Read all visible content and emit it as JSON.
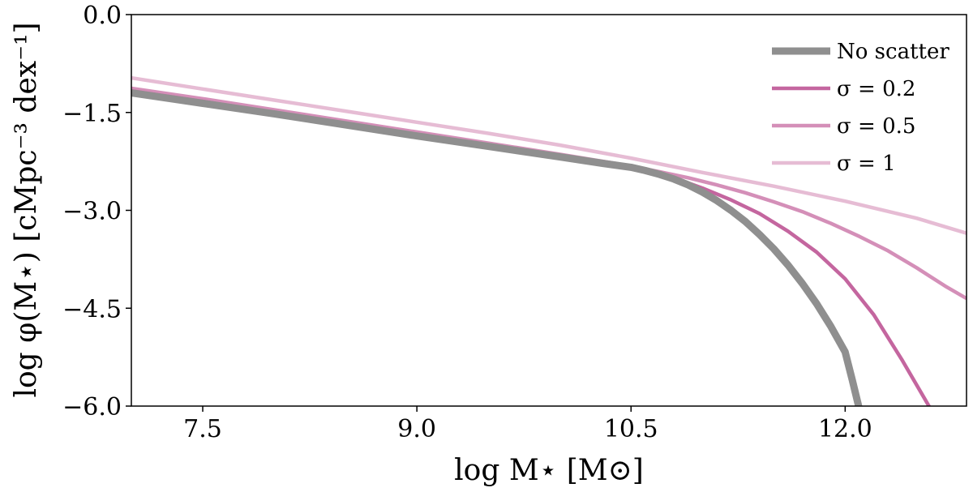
{
  "chart_data": {
    "type": "line",
    "xlabel": "log M⋆ [M⊙]",
    "ylabel": "log φ(M⋆) [cMpc⁻³ dex⁻¹]",
    "xlim": [
      7.0,
      12.85
    ],
    "ylim": [
      -6.0,
      0.0
    ],
    "x_ticks": [
      7.5,
      9.0,
      10.5,
      12.0
    ],
    "x_tick_labels": [
      "7.5",
      "9.0",
      "10.5",
      "12.0"
    ],
    "y_ticks": [
      0.0,
      -1.5,
      -3.0,
      -4.5,
      -6.0
    ],
    "y_tick_labels": [
      "0.0",
      "−1.5",
      "−3.0",
      "−4.5",
      "−6.0"
    ],
    "grid": false,
    "legend_position": "top-right",
    "series": [
      {
        "name": "No scatter",
        "color": "#8f8f8f",
        "x": [
          7.0,
          7.5,
          8.0,
          8.5,
          9.0,
          9.5,
          10.0,
          10.3,
          10.5,
          10.6,
          10.7,
          10.8,
          10.9,
          11.0,
          11.1,
          11.2,
          11.3,
          11.4,
          11.5,
          11.6,
          11.7,
          11.8,
          11.9,
          12.0,
          12.05,
          12.1
        ],
        "values": [
          -1.2,
          -1.36,
          -1.52,
          -1.69,
          -1.86,
          -2.02,
          -2.18,
          -2.28,
          -2.34,
          -2.39,
          -2.45,
          -2.52,
          -2.61,
          -2.72,
          -2.85,
          -3.0,
          -3.17,
          -3.37,
          -3.59,
          -3.84,
          -4.12,
          -4.43,
          -4.78,
          -5.17,
          -5.6,
          -6.05
        ]
      },
      {
        "name": "σ = 0.2",
        "color": "#c4669f",
        "x": [
          7.0,
          7.5,
          8.0,
          8.5,
          9.0,
          9.5,
          10.0,
          10.3,
          10.5,
          10.6,
          10.7,
          10.8,
          10.9,
          11.0,
          11.2,
          11.4,
          11.6,
          11.8,
          12.0,
          12.2,
          12.4,
          12.6
        ],
        "values": [
          -1.17,
          -1.33,
          -1.5,
          -1.67,
          -1.84,
          -2.0,
          -2.17,
          -2.27,
          -2.34,
          -2.39,
          -2.45,
          -2.5,
          -2.58,
          -2.66,
          -2.84,
          -3.05,
          -3.32,
          -3.64,
          -4.05,
          -4.6,
          -5.3,
          -6.05
        ]
      },
      {
        "name": "σ = 0.5",
        "color": "#d48fb8",
        "x": [
          7.0,
          7.5,
          8.0,
          8.5,
          9.0,
          9.5,
          10.0,
          10.5,
          10.7,
          10.9,
          11.1,
          11.3,
          11.5,
          11.7,
          11.9,
          12.1,
          12.3,
          12.5,
          12.7,
          12.85
        ],
        "values": [
          -1.13,
          -1.29,
          -1.46,
          -1.63,
          -1.8,
          -1.97,
          -2.14,
          -2.32,
          -2.41,
          -2.5,
          -2.61,
          -2.73,
          -2.87,
          -3.02,
          -3.2,
          -3.4,
          -3.62,
          -3.88,
          -4.16,
          -4.35
        ]
      },
      {
        "name": "σ = 1",
        "color": "#e6bcd4",
        "x": [
          7.0,
          7.5,
          8.0,
          8.5,
          9.0,
          9.5,
          10.0,
          10.5,
          11.0,
          11.5,
          12.0,
          12.5,
          12.85
        ],
        "values": [
          -0.97,
          -1.14,
          -1.31,
          -1.48,
          -1.65,
          -1.82,
          -2.0,
          -2.2,
          -2.42,
          -2.63,
          -2.86,
          -3.12,
          -3.35
        ]
      }
    ]
  }
}
